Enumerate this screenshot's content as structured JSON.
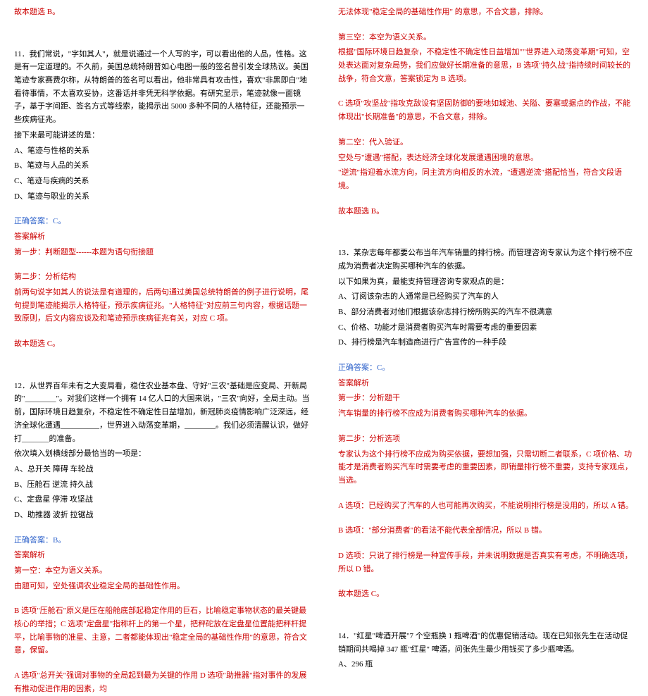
{
  "left": {
    "top_red": "故本题选 B。",
    "q11_intro": "11．我们常说，\"字如其人\"，就是说通过一个人写的字，可以看出他的人品，性格。这是有一定道理的。不久前，美国总统特朗普如心电图一般的签名曾引发全球热议。美国笔迹专家赛费尔称，从特朗普的签名可以看出，他非常具有攻击性，喜欢\"非黑即白\"地看待事情，不太喜欢妥协，这番话并非凭无科学依据。有研究显示，笔迹就像一面镜子，基于字间距、签名方式等线索，能揭示出 5000 多种不同的人格特征，还能预示一些疾病征兆。",
    "q11_stem": "接下来最可能讲述的是：",
    "q11_opts": [
      "A、笔迹与性格的关系",
      "B、笔迹与人品的关系",
      "C、笔迹与疾病的关系",
      "D、笔迹与职业的关系"
    ],
    "q11_ans": "正确答案：C。",
    "q11_parse_h": "答案解析",
    "q11_parse1": "第一步：判断题型------本题为语句衔接题",
    "q11_parse2": "第二步：分析结构",
    "q11_parse3": "前两句说字如其人的说法是有道理的，后两句通过美国总统特朗普的例子进行说明，尾句提到笔迹能揭示人格特征，预示疾病征兆。\"人格特征\"对应前三句内容，根据话题一致原则，后文内容应谈及和笔迹预示疾病征兆有关，对应 C 项。",
    "q11_parse4": "故本题选 C。",
    "q12_intro": "12．从世界百年未有之大变局看，稳住农业基本盘、守好\"三农\"基础是应变局、开新局的\"________\"。对我们这样一个拥有 14 亿人口的大国来说，\"三农\"向好，全局主动。当前，国际环境日趋复杂，不稳定性不确定性日益增加，新冠肺炎疫情影响广泛深远，经济全球化遭遇__________，世界进入动荡变革期，________。我们必须清醒认识，做好打_______的准备。",
    "q12_stem": "依次填入划横线部分最恰当的一项是：",
    "q12_opts": [
      "A、总开关   障碍   车轮战",
      "B、压舱石   逆流   持久战",
      "C、定盘星   停滞   攻坚战",
      "D、助推器   波折   拉锯战"
    ],
    "q12_ans": "正确答案：B。",
    "q12_parse_h": "答案解析",
    "q12_parse1": "第一空：本空为语义关系。",
    "q12_parse2": "由题可知，空处强调农业稳定全局的基础性作用。",
    "q12_parse3": "B 选项\"压舱石\"原义是压在船舱底部起稳定作用的巨石，比喻稳定事物状态的最关键最核心的举措；C 选项\"定盘星\"指称杆上的第一个星，把秤砣放在定盘星位置能把秤杆提平，比喻事物的准星、主意，二者都能体现出\"稳定全局的基础性作用\"的意思，符合文意，保留。",
    "q12_parse4": "A 选项\"总开关\"强调对事物的全局起到最为关键的作用 D 选项\"助推器\"指对事件的发展有推动促进作用的因素，均"
  },
  "right": {
    "r1": "无法体现\"稳定全局的基础性作用\" 的意思，不合文意，排除。",
    "r2": "第三空：本空为语义关系。",
    "r3": "根据\"国际环境日趋复杂，不稳定性不确定性日益增加\"\"世界进入动荡变革期\"可知，空处表达面对复杂局势，我们应做好长期准备的意思，B 选项\"持久战\"指持续时间较长的战争，符合文意，答案锁定为 B 选项。",
    "r4": "C 选项\"攻坚战\"指攻克敌设有坚固防御的要地如城池、关隘、要塞或据点的作战，不能体现出\"长期准备\"的意思，不合文意，排除。",
    "r5": "第二空：代入验证。",
    "r6": "空处与\"遭遇\"搭配，表达经济全球化发展遭遇困境的意思。",
    "r7": "\"逆流\"指迎着水流方向，同主流方向相反的水流，\"遭遇逆流\"搭配恰当，符合文段语境。",
    "r8": "故本题选 B。",
    "q13_intro": "13．某杂志每年都要公布当年汽车销量的排行榜。而管理咨询专家认为这个排行榜不应成为消费者决定购买哪种汽车的依据。",
    "q13_stem": "以下如果为真，最能支持管理咨询专家观点的是：",
    "q13_opts": [
      "A、订阅该杂志的人通常是已经购买了汽车的人",
      "B、部分消费者对他们根据该杂志排行榜所购买的汽车不很满意",
      "C、价格、功能才是消费者购买汽车时需要考虑的重要因素",
      "D、排行榜是汽车制造商进行广告宣传的一种手段"
    ],
    "q13_ans": "正确答案：C。",
    "q13_parse_h": "答案解析",
    "q13_parse1": "第一步：分析题干",
    "q13_parse2": "汽车销量的排行榜不应成为消费者购买哪种汽车的依据。",
    "q13_parse3": "第二步：分析选项",
    "q13_parse4": "专家认为这个排行榜不应成为购买依据，要想加强，只需切断二者联系，C 项价格、功能才是消费者购买汽车时需要考虑的重要因素，即销量排行榜不重要，支持专家观点，当选。",
    "q13_parse5": "A 选项：已经购买了汽车的人也可能再次购买，不能说明排行榜是没用的，所以 A 错。",
    "q13_parse6": "B 选项：\"部分消费者\"的看法不能代表全部情况，所以 B 错。",
    "q13_parse7": "D 选项：只说了排行榜是一种宣传手段，并未说明数据是否真实有考虑，不明确选项，所以 D 错。",
    "q13_parse8": "故本题选 C。",
    "q14_intro": "14．\"红星\"啤酒开展\"7 个空瓶换 1 瓶啤酒\"的优惠促销活动。现在已知张先生在活动促销期间共喝掉 347 瓶\"红星\" 啤酒，问张先生最少用钱买了多少瓶啤酒。",
    "q14_optA": "A、296 瓶"
  }
}
